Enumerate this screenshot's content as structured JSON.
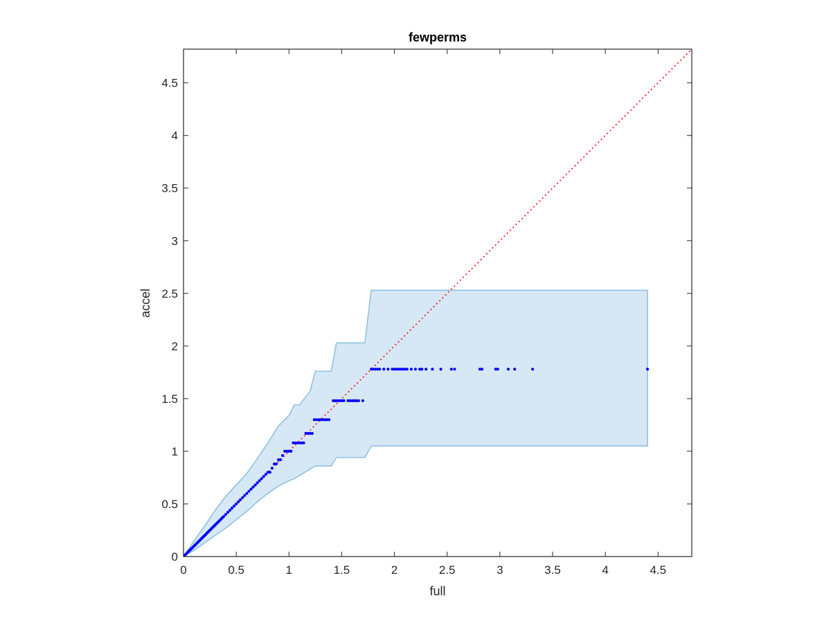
{
  "chart_data": {
    "type": "scatter",
    "title": "fewperms",
    "xlabel": "full",
    "ylabel": "accel",
    "xlim": [
      0,
      4.82
    ],
    "ylim": [
      0,
      4.82
    ],
    "x_ticks": [
      0,
      0.5,
      1,
      1.5,
      2,
      2.5,
      3,
      3.5,
      4,
      4.5
    ],
    "y_ticks": [
      0,
      0.5,
      1,
      1.5,
      2,
      2.5,
      3,
      3.5,
      4,
      4.5
    ],
    "x_tick_labels": [
      "0",
      "0.5",
      "1",
      "1.5",
      "2",
      "2.5",
      "3",
      "3.5",
      "4",
      "4.5"
    ],
    "y_tick_labels": [
      "0",
      "0.5",
      "1",
      "1.5",
      "2",
      "2.5",
      "3",
      "3.5",
      "4",
      "4.5"
    ],
    "grid": false,
    "reference_line": {
      "from": [
        0,
        0
      ],
      "to": [
        4.82,
        4.82
      ],
      "style": "dotted",
      "color": "#ff0000"
    },
    "band": {
      "x": [
        0,
        0.1,
        0.2,
        0.3,
        0.4,
        0.5,
        0.6,
        0.7,
        0.8,
        0.9,
        1.0,
        1.05,
        1.1,
        1.2,
        1.25,
        1.3,
        1.4,
        1.45,
        1.55,
        1.72,
        1.78,
        4.4
      ],
      "upper": [
        0,
        0.15,
        0.29,
        0.44,
        0.57,
        0.68,
        0.79,
        0.93,
        1.08,
        1.24,
        1.34,
        1.44,
        1.44,
        1.57,
        1.76,
        1.76,
        1.76,
        2.03,
        2.03,
        2.03,
        2.53,
        2.53
      ],
      "lower": [
        0,
        0.06,
        0.13,
        0.2,
        0.27,
        0.35,
        0.43,
        0.52,
        0.6,
        0.67,
        0.72,
        0.74,
        0.77,
        0.83,
        0.86,
        0.86,
        0.86,
        0.94,
        0.94,
        0.94,
        1.05,
        1.05
      ],
      "fill_color": "#d6e8f5",
      "edge_color": "#8fc1e0"
    },
    "series": [
      {
        "color": "#0000ff",
        "x": [
          0.01,
          0.02,
          0.03,
          0.04,
          0.05,
          0.06,
          0.07,
          0.08,
          0.09,
          0.1,
          0.11,
          0.12,
          0.13,
          0.14,
          0.15,
          0.16,
          0.17,
          0.18,
          0.19,
          0.2,
          0.21,
          0.22,
          0.23,
          0.24,
          0.25,
          0.26,
          0.27,
          0.28,
          0.29,
          0.3,
          0.31,
          0.32,
          0.33,
          0.34,
          0.35,
          0.36,
          0.37,
          0.38,
          0.4,
          0.42,
          0.44,
          0.46,
          0.48,
          0.5,
          0.52,
          0.54,
          0.56,
          0.58,
          0.6,
          0.62,
          0.64,
          0.66,
          0.68,
          0.7,
          0.72,
          0.74,
          0.76,
          0.78,
          0.8,
          0.82,
          0.84,
          0.86,
          0.88,
          0.9,
          0.92,
          0.94,
          0.96,
          0.98,
          1.0,
          1.02,
          1.04,
          1.06,
          1.08,
          1.1,
          1.12,
          1.14,
          1.16,
          1.18,
          1.2,
          1.22,
          1.24,
          1.26,
          1.28,
          1.3,
          1.32,
          1.34,
          1.36,
          1.38,
          1.42,
          1.44,
          1.46,
          1.48,
          1.5,
          1.52,
          1.56,
          1.58,
          1.6,
          1.62,
          1.64,
          1.66,
          1.7,
          1.78,
          1.8,
          1.82,
          1.84,
          1.86,
          1.9,
          1.94,
          1.98,
          2.0,
          2.02,
          2.04,
          2.06,
          2.08,
          2.1,
          2.12,
          2.16,
          2.2,
          2.24,
          2.26,
          2.3,
          2.36,
          2.44,
          2.54,
          2.57,
          2.81,
          2.83,
          2.96,
          2.98,
          3.08,
          3.14,
          3.31,
          4.4
        ],
        "y": [
          0.01,
          0.02,
          0.03,
          0.04,
          0.05,
          0.06,
          0.07,
          0.08,
          0.09,
          0.1,
          0.11,
          0.12,
          0.13,
          0.14,
          0.15,
          0.16,
          0.17,
          0.18,
          0.19,
          0.2,
          0.21,
          0.22,
          0.23,
          0.24,
          0.25,
          0.26,
          0.27,
          0.28,
          0.29,
          0.3,
          0.31,
          0.32,
          0.33,
          0.34,
          0.35,
          0.36,
          0.37,
          0.38,
          0.4,
          0.42,
          0.44,
          0.46,
          0.48,
          0.5,
          0.52,
          0.54,
          0.56,
          0.58,
          0.6,
          0.62,
          0.64,
          0.66,
          0.68,
          0.7,
          0.72,
          0.74,
          0.76,
          0.78,
          0.8,
          0.8,
          0.84,
          0.88,
          0.88,
          0.92,
          0.92,
          0.96,
          1.0,
          1.0,
          1.0,
          1.0,
          1.08,
          1.08,
          1.08,
          1.08,
          1.08,
          1.08,
          1.17,
          1.17,
          1.17,
          1.17,
          1.3,
          1.3,
          1.3,
          1.3,
          1.3,
          1.3,
          1.3,
          1.3,
          1.48,
          1.48,
          1.48,
          1.48,
          1.48,
          1.48,
          1.48,
          1.48,
          1.48,
          1.48,
          1.48,
          1.48,
          1.48,
          1.78,
          1.78,
          1.78,
          1.78,
          1.78,
          1.78,
          1.78,
          1.78,
          1.78,
          1.78,
          1.78,
          1.78,
          1.78,
          1.78,
          1.78,
          1.78,
          1.78,
          1.78,
          1.78,
          1.78,
          1.78,
          1.78,
          1.78,
          1.78,
          1.78,
          1.78,
          1.78,
          1.78,
          1.78,
          1.78,
          1.78,
          1.78
        ]
      }
    ]
  }
}
